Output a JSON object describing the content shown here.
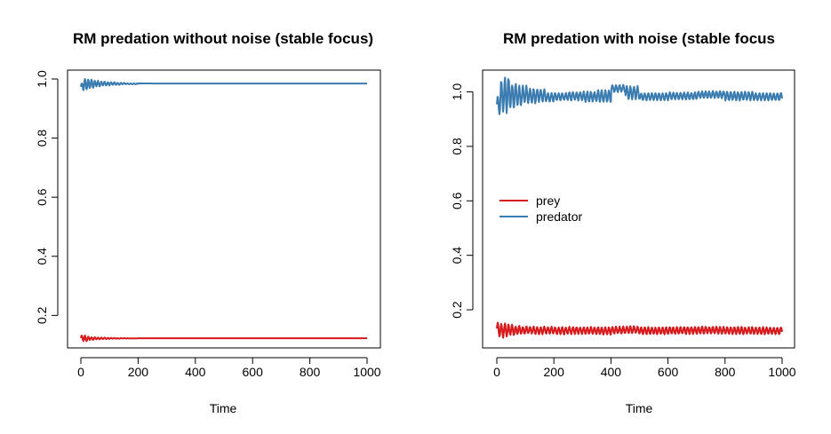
{
  "chart_data": [
    {
      "type": "line",
      "title": "RM predation without noise (stable focus)",
      "xlabel": "Time",
      "ylabel": "",
      "xlim": [
        0,
        1000
      ],
      "ylim": [
        0.09,
        1.03
      ],
      "x_ticks": [
        0,
        200,
        400,
        600,
        800,
        1000
      ],
      "y_ticks": [
        0.2,
        0.4,
        0.6,
        0.8,
        1.0
      ],
      "x_tick_labels": [
        "0",
        "200",
        "400",
        "600",
        "800",
        "1000"
      ],
      "y_tick_labels": [
        "0.2",
        "0.4",
        "0.6",
        "0.8",
        "1.0"
      ],
      "legend": null,
      "series": [
        {
          "name": "prey",
          "color": "#d7191c",
          "noise": false,
          "points": [
            [
              0,
              0.115
            ],
            [
              8,
              0.132
            ],
            [
              15,
              0.113
            ],
            [
              25,
              0.128
            ],
            [
              35,
              0.117
            ],
            [
              45,
              0.126
            ],
            [
              55,
              0.119
            ],
            [
              70,
              0.125
            ],
            [
              85,
              0.12
            ],
            [
              100,
              0.124
            ],
            [
              120,
              0.121
            ],
            [
              140,
              0.123
            ],
            [
              160,
              0.122
            ],
            [
              200,
              0.1225
            ],
            [
              300,
              0.1225
            ],
            [
              500,
              0.1225
            ],
            [
              700,
              0.1225
            ],
            [
              1000,
              0.1225
            ]
          ]
        },
        {
          "name": "predator",
          "color": "#3a7bb0",
          "noise": false,
          "points": [
            [
              0,
              0.985
            ],
            [
              5,
              0.962
            ],
            [
              12,
              1.0
            ],
            [
              20,
              0.965
            ],
            [
              30,
              0.998
            ],
            [
              40,
              0.97
            ],
            [
              50,
              0.994
            ],
            [
              60,
              0.975
            ],
            [
              72,
              0.991
            ],
            [
              85,
              0.978
            ],
            [
              100,
              0.989
            ],
            [
              120,
              0.98
            ],
            [
              140,
              0.987
            ],
            [
              160,
              0.982
            ],
            [
              200,
              0.985
            ],
            [
              300,
              0.9845
            ],
            [
              500,
              0.9845
            ],
            [
              700,
              0.9845
            ],
            [
              1000,
              0.9845
            ]
          ]
        }
      ]
    },
    {
      "type": "line",
      "title": "RM predation with noise (stable focus",
      "xlabel": "Time",
      "ylabel": "",
      "xlim": [
        0,
        1000
      ],
      "ylim": [
        0.06,
        1.08
      ],
      "x_ticks": [
        0,
        200,
        400,
        600,
        800,
        1000
      ],
      "y_ticks": [
        0.2,
        0.4,
        0.6,
        0.8,
        1.0
      ],
      "x_tick_labels": [
        "0",
        "200",
        "400",
        "600",
        "800",
        "1000"
      ],
      "y_tick_labels": [
        "0.2",
        "0.4",
        "0.6",
        "0.8",
        "1.0"
      ],
      "legend": {
        "position": "middle-left",
        "entries": [
          "prey",
          "predator"
        ]
      },
      "series": [
        {
          "name": "prey",
          "color": "#d7191c",
          "noise": true,
          "points": [
            [
              0,
              0.11
            ],
            [
              6,
              0.15
            ],
            [
              14,
              0.1
            ],
            [
              25,
              0.148
            ],
            [
              35,
              0.104
            ],
            [
              45,
              0.145
            ],
            [
              55,
              0.108
            ],
            [
              70,
              0.14
            ],
            [
              85,
              0.112
            ],
            [
              100,
              0.136
            ],
            [
              130,
              0.115
            ],
            [
              160,
              0.132
            ],
            [
              200,
              0.118
            ],
            [
              250,
              0.128
            ],
            [
              300,
              0.12
            ],
            [
              350,
              0.127
            ],
            [
              400,
              0.118
            ],
            [
              450,
              0.133
            ],
            [
              500,
              0.12
            ],
            [
              600,
              0.126
            ],
            [
              700,
              0.122
            ],
            [
              800,
              0.128
            ],
            [
              900,
              0.12
            ],
            [
              1000,
              0.126
            ]
          ]
        },
        {
          "name": "predator",
          "color": "#3a7bb0",
          "noise": true,
          "points": [
            [
              0,
              0.98
            ],
            [
              8,
              0.92
            ],
            [
              18,
              1.04
            ],
            [
              28,
              0.93
            ],
            [
              38,
              1.05
            ],
            [
              50,
              0.94
            ],
            [
              62,
              1.03
            ],
            [
              75,
              0.95
            ],
            [
              90,
              1.02
            ],
            [
              110,
              0.96
            ],
            [
              140,
              1.01
            ],
            [
              170,
              0.965
            ],
            [
              200,
              0.995
            ],
            [
              250,
              0.97
            ],
            [
              300,
              1.0
            ],
            [
              350,
              0.965
            ],
            [
              400,
              1.005
            ],
            [
              450,
              1.02
            ],
            [
              500,
              0.975
            ],
            [
              600,
              0.99
            ],
            [
              700,
              0.98
            ],
            [
              800,
              1.0
            ],
            [
              900,
              0.97
            ],
            [
              1000,
              0.995
            ]
          ]
        }
      ]
    }
  ]
}
